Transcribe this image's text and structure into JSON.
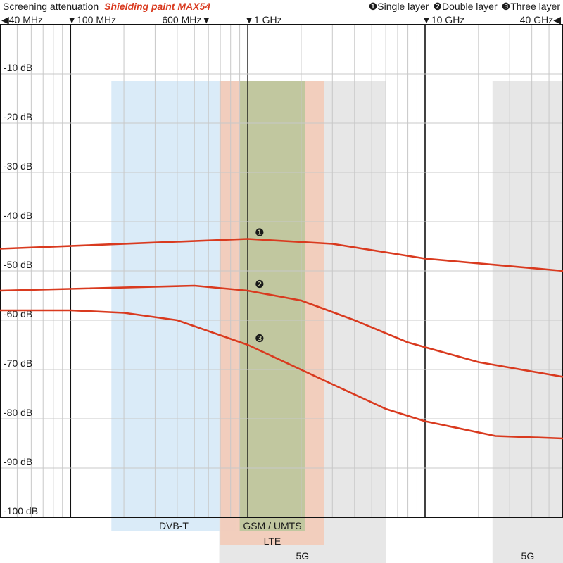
{
  "chart_data": {
    "type": "line",
    "title_prefix": "Screening attenuation",
    "title_product": "Shielding paint MAX54",
    "legend": [
      {
        "marker": "❶",
        "label": "Single layer"
      },
      {
        "marker": "❷",
        "label": "Double layer"
      },
      {
        "marker": "❸",
        "label": "Three layer"
      }
    ],
    "x_scale": "log",
    "x_unit": "Hz",
    "x_range": [
      40000000,
      60000000000
    ],
    "x_ticks": [
      {
        "value": 40000000,
        "label": "40 MHz",
        "arrow": "◀"
      },
      {
        "value": 100000000,
        "label": "100 MHz",
        "arrow": "▼"
      },
      {
        "value": 600000000,
        "label": "600 MHz",
        "arrow": "▼"
      },
      {
        "value": 1000000000,
        "label": "1 GHz",
        "arrow": "▼"
      },
      {
        "value": 10000000000,
        "label": "10 GHz",
        "arrow": "▼"
      },
      {
        "value": 40000000000,
        "label": "40 GHz",
        "arrow": "◀"
      }
    ],
    "ylim": [
      -100,
      0
    ],
    "y_ticks": [
      {
        "value": -10,
        "label": "-10 dB"
      },
      {
        "value": -20,
        "label": "-20 dB"
      },
      {
        "value": -30,
        "label": "-30 dB"
      },
      {
        "value": -40,
        "label": "-40 dB"
      },
      {
        "value": -50,
        "label": "-50 dB"
      },
      {
        "value": -60,
        "label": "-60 dB"
      },
      {
        "value": -70,
        "label": "-70 dB"
      },
      {
        "value": -80,
        "label": "-80 dB"
      },
      {
        "value": -90,
        "label": "-90 dB"
      },
      {
        "value": -100,
        "label": "-100 dB"
      }
    ],
    "grid": true,
    "series": [
      {
        "marker": "❶",
        "name": "Single layer",
        "color": "#d93a1f",
        "x": [
          40000000,
          1000000000,
          3000000000,
          10000000000,
          60000000000
        ],
        "y": [
          -45.5,
          -43.5,
          -44.5,
          -47.5,
          -50
        ]
      },
      {
        "marker": "❷",
        "name": "Double layer",
        "color": "#d93a1f",
        "x": [
          40000000,
          500000000,
          1000000000,
          2000000000,
          4000000000,
          8000000000,
          20000000000,
          60000000000
        ],
        "y": [
          -54,
          -53,
          -54,
          -56,
          -60,
          -64.5,
          -68.5,
          -71.5
        ]
      },
      {
        "marker": "❸",
        "name": "Three layer",
        "color": "#d93a1f",
        "x": [
          40000000,
          100000000,
          200000000,
          400000000,
          1000000000,
          3000000000,
          6000000000,
          10000000000,
          25000000000,
          60000000000
        ],
        "y": [
          -58,
          -58,
          -58.5,
          -60,
          -65,
          -73,
          -78,
          -80.5,
          -83.5,
          -84
        ]
      }
    ],
    "bands": [
      {
        "label": "DVB-T",
        "x_start": 170000000,
        "x_end": 860000000,
        "color": "#d4e8f7",
        "label_row": 1
      },
      {
        "label": "5G",
        "x_start": 690000000,
        "x_end": 6000000000,
        "color": "#e3e3e3",
        "label_row": 3
      },
      {
        "label": "5G",
        "x_start": 24000000000,
        "x_end": 60000000000,
        "color": "#e3e3e3",
        "label_row": 3
      },
      {
        "label": "LTE",
        "x_start": 700000000,
        "x_end": 2700000000,
        "color": "#f3c9b5",
        "label_row": 2
      },
      {
        "label": "GSM / UMTS",
        "x_start": 900000000,
        "x_end": 2100000000,
        "color": "#b8c59a",
        "label_row": 1
      }
    ]
  }
}
